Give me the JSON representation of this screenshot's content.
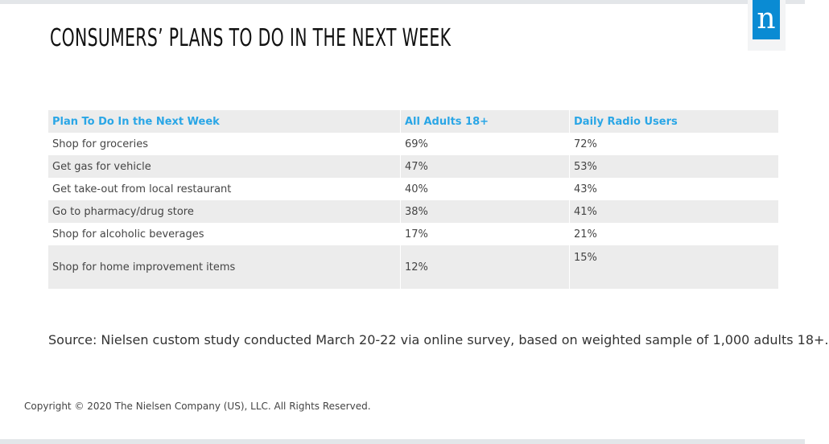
{
  "logo": {
    "letter": "n",
    "color": "#0a8bd3"
  },
  "title": "CONSUMERS’ PLANS TO DO IN THE NEXT WEEK",
  "table": {
    "headers": [
      "Plan To Do In the Next Week",
      "All Adults 18+",
      "Daily Radio Users"
    ],
    "rows": [
      [
        "Shop for groceries",
        "69%",
        "72%"
      ],
      [
        "Get gas for vehicle",
        "47%",
        "53%"
      ],
      [
        "Get take-out from local restaurant",
        "40%",
        "43%"
      ],
      [
        "Go to pharmacy/drug store",
        "38%",
        "41%"
      ],
      [
        "Shop for alcoholic beverages",
        "17%",
        "21%"
      ],
      [
        "Shop for home improvement items",
        "12%",
        "15%"
      ]
    ]
  },
  "source": "Source: Nielsen custom study conducted March 20-22 via online survey, based on weighted sample of 1,000 adults 18+.",
  "copyright": "Copyright © 2020 The Nielsen Company (US), LLC. All Rights Reserved.",
  "colors": {
    "header_text": "#2aa6e6",
    "row_shade": "#ececec",
    "frame": "#e3e6e9"
  }
}
